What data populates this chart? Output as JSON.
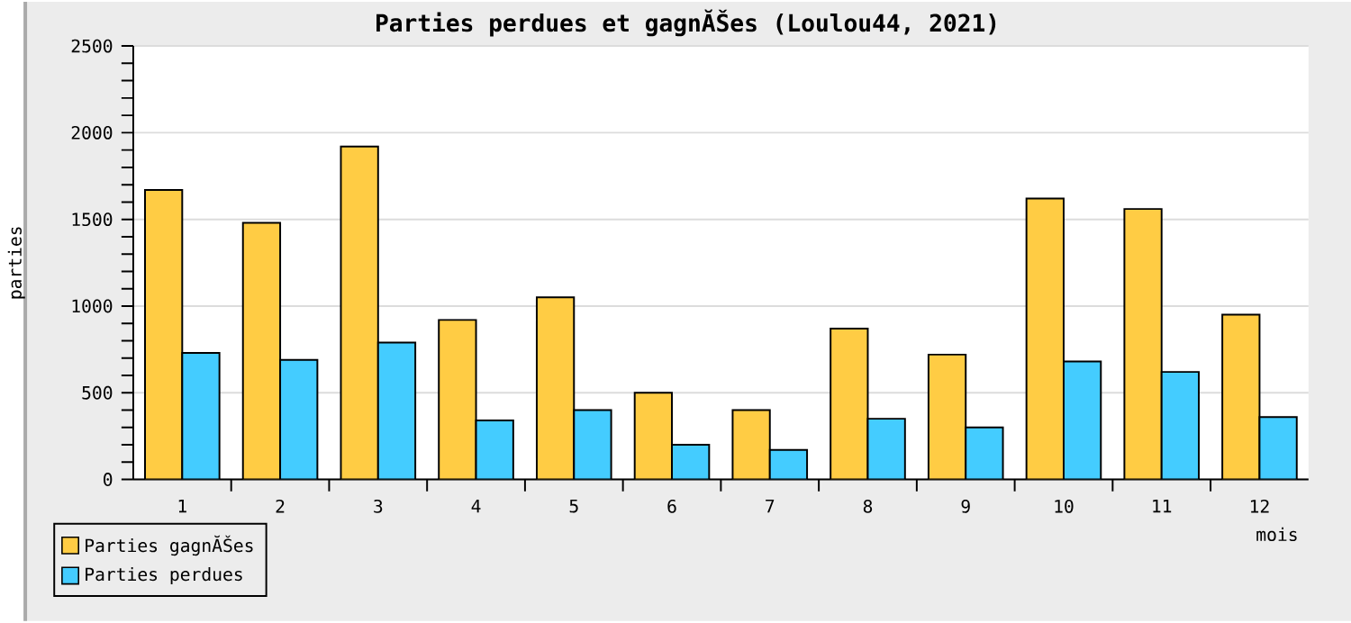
{
  "chart_data": {
    "type": "bar",
    "title": "Parties perdues et gagnĂŠes (Loulou44, 2021)",
    "xlabel": "mois",
    "ylabel": "parties",
    "categories": [
      "1",
      "2",
      "3",
      "4",
      "5",
      "6",
      "7",
      "8",
      "9",
      "10",
      "11",
      "12"
    ],
    "series": [
      {
        "name": "Parties gagnĂŠes",
        "color": "#ffcc44",
        "values": [
          1670,
          1480,
          1920,
          920,
          1050,
          500,
          400,
          870,
          720,
          1620,
          1560,
          950
        ]
      },
      {
        "name": "Parties perdues",
        "color": "#44ccff",
        "values": [
          730,
          690,
          790,
          340,
          400,
          200,
          170,
          350,
          300,
          680,
          620,
          360
        ]
      }
    ],
    "ylim": [
      0,
      2500
    ],
    "yticks": [
      0,
      500,
      1000,
      1500,
      2000,
      2500
    ],
    "grid": "y",
    "legend": "bottom left"
  }
}
